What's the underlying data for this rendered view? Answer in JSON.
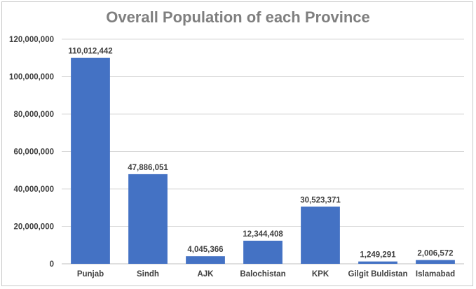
{
  "chart_data": {
    "type": "bar",
    "title": "Overall Population of each Province",
    "xlabel": "",
    "ylabel": "",
    "categories": [
      "Punjab",
      "Sindh",
      "AJK",
      "Balochistan",
      "KPK",
      "Gilgit Buldistan",
      "Islamabad"
    ],
    "values": [
      110012442,
      47886051,
      4045366,
      12344408,
      30523371,
      1249291,
      2006572
    ],
    "data_labels": [
      "110,012,442",
      "47,886,051",
      "4,045,366",
      "12,344,408",
      "30,523,371",
      "1,249,291",
      "2,006,572"
    ],
    "ylim": [
      0,
      120000000
    ],
    "yticks": [
      0,
      20000000,
      40000000,
      60000000,
      80000000,
      100000000,
      120000000
    ],
    "ytick_labels": [
      "0",
      "20,000,000",
      "40,000,000",
      "60,000,000",
      "80,000,000",
      "100,000,000",
      "120,000,000"
    ],
    "grid": true,
    "legend": "none",
    "colors": {
      "bar": "#4472c4",
      "grid": "#d9d9d9",
      "text": "#404040",
      "title": "#7f7f7f"
    }
  }
}
